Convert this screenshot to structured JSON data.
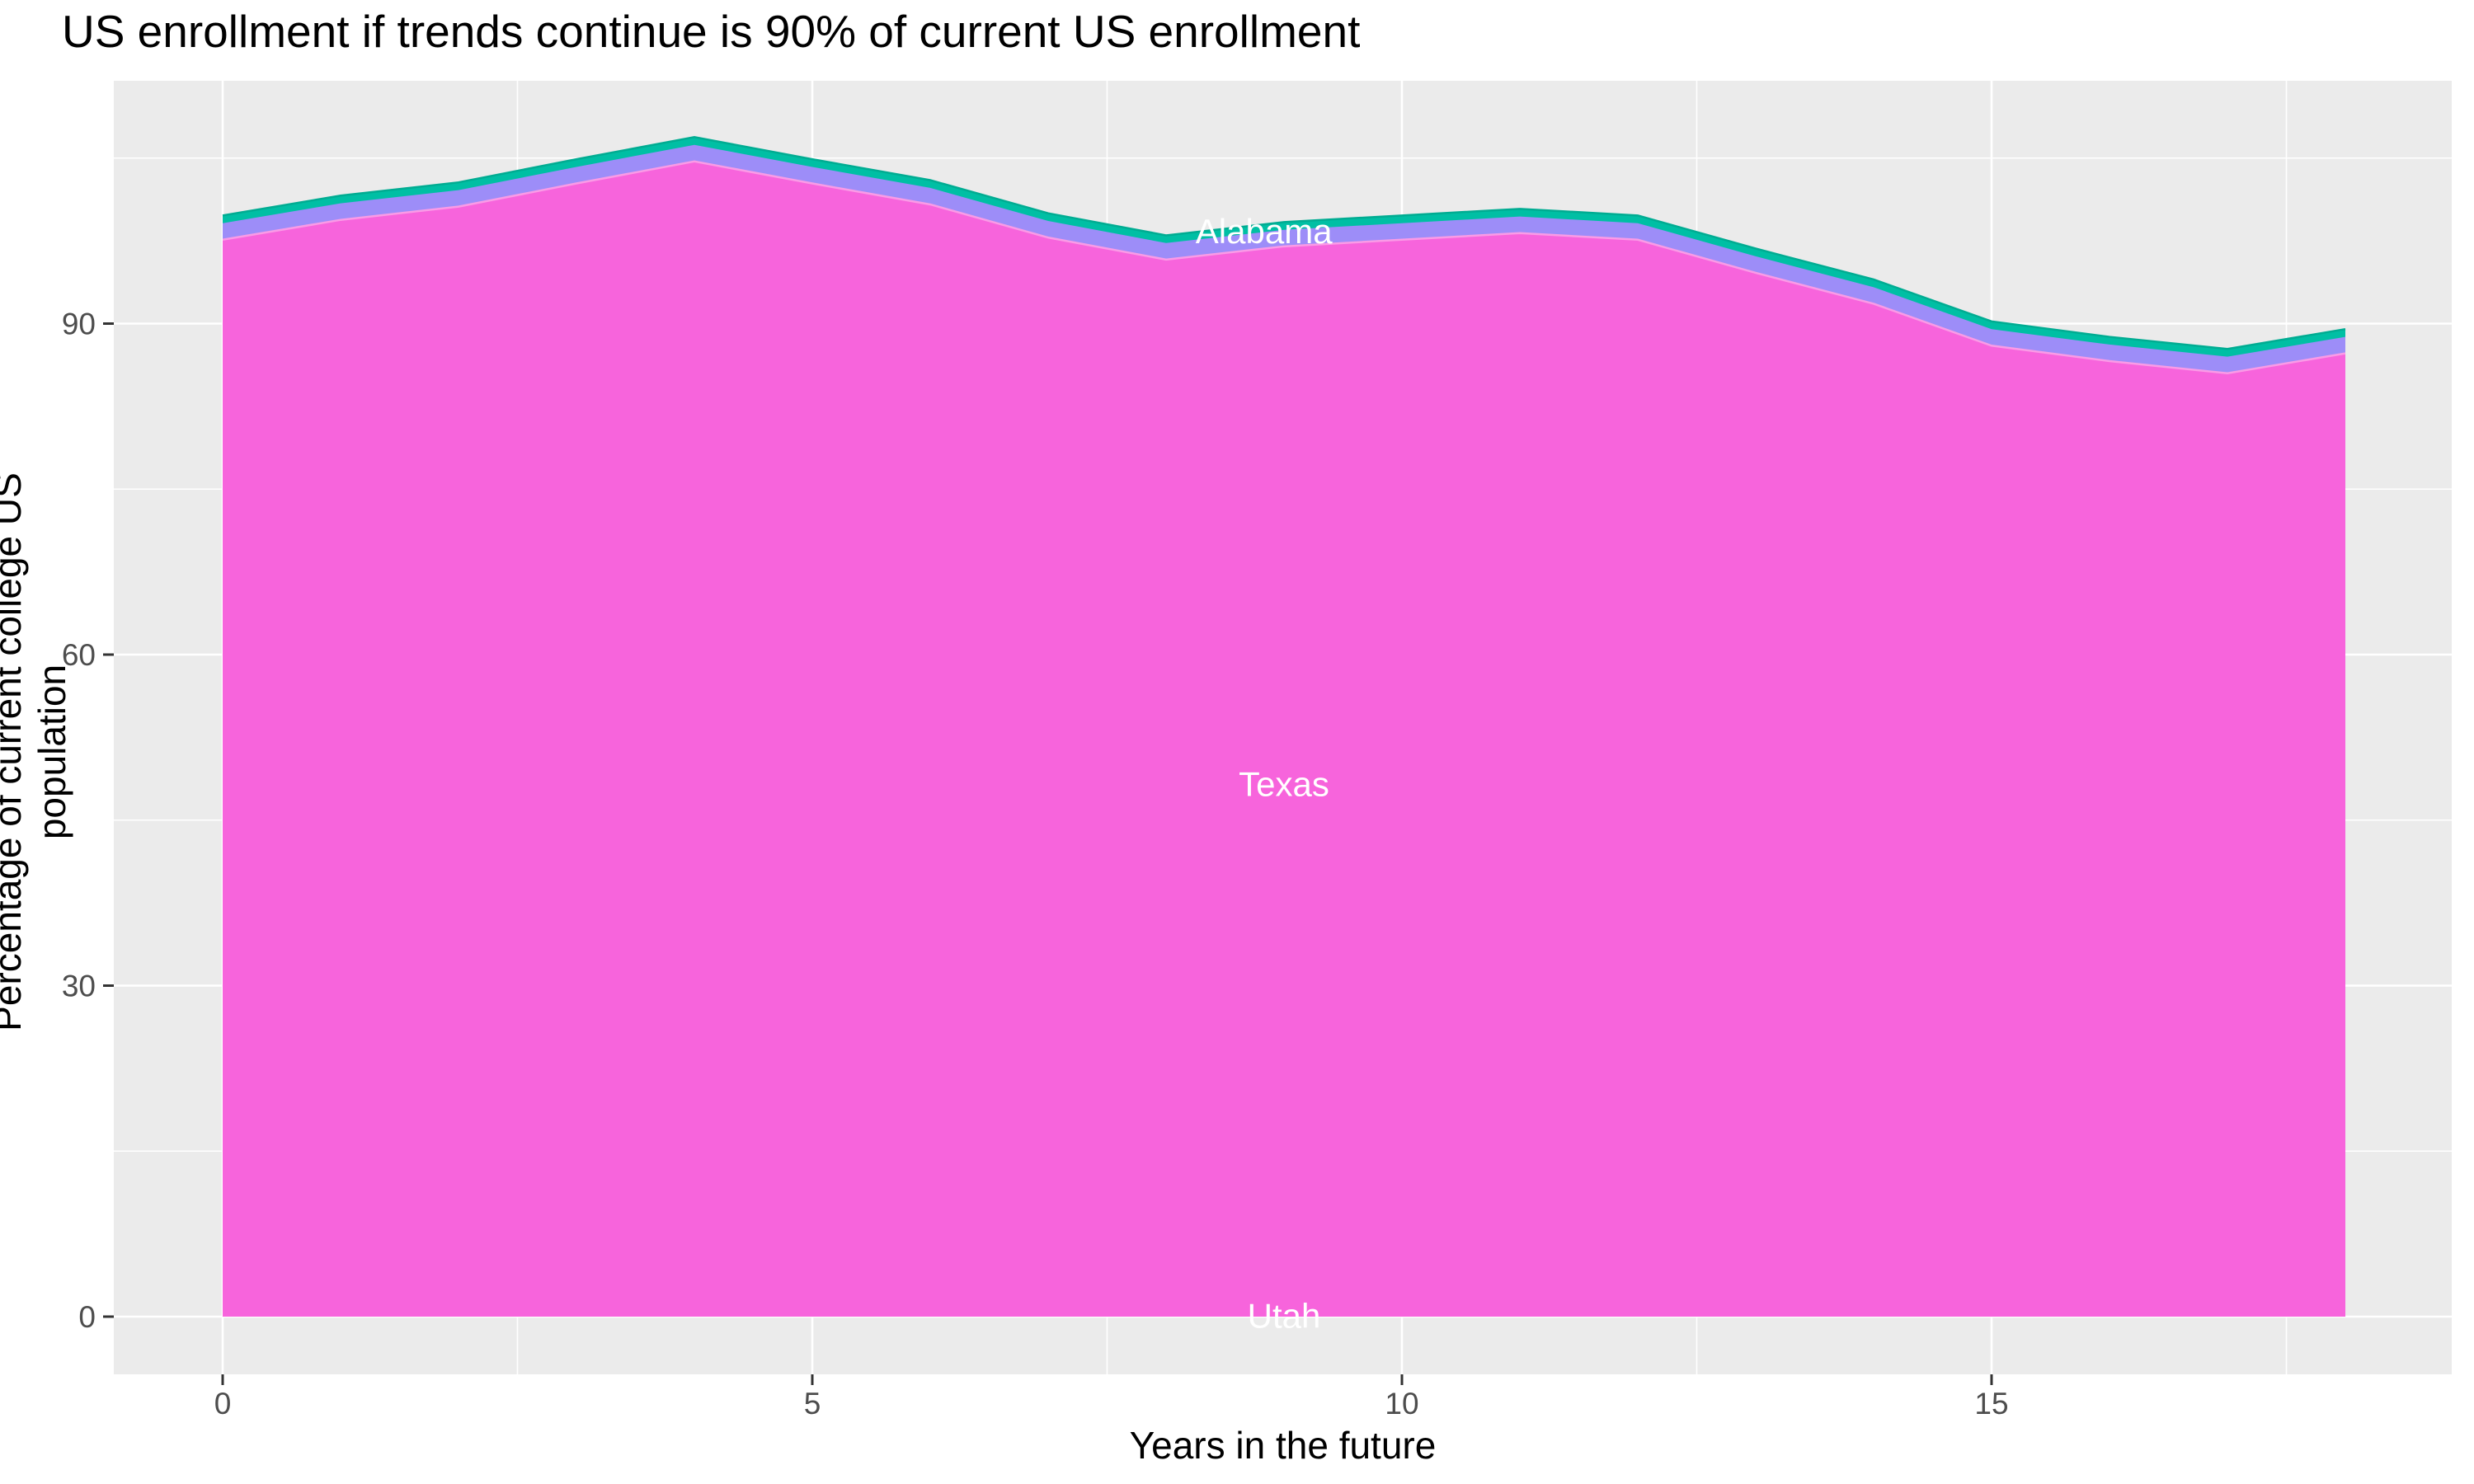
{
  "title": "US enrollment if trends continue is 90% of current US enrollment",
  "chart_data": {
    "type": "area",
    "stacked": true,
    "title": "US enrollment if trends continue is 90% of current US enrollment",
    "xlabel": "Years in the future",
    "ylabel": "Percentage of current college US population",
    "x": [
      0,
      1,
      2,
      3,
      4,
      5,
      6,
      7,
      8,
      9,
      10,
      11,
      12,
      13,
      14,
      15,
      16,
      17,
      18
    ],
    "series": [
      {
        "name": "Texas",
        "color": "#F764DC",
        "top_edge": "#FA9BE6",
        "values": [
          97.6,
          99.4,
          100.6,
          102.7,
          104.7,
          102.7,
          100.8,
          97.8,
          95.8,
          97.0,
          97.6,
          98.2,
          97.6,
          94.6,
          91.8,
          88.0,
          86.6,
          85.5,
          87.3
        ]
      },
      {
        "name": "Alabama",
        "color": "#9D8DF8",
        "top_edge": null,
        "values": [
          1.5,
          1.5,
          1.5,
          1.5,
          1.5,
          1.5,
          1.5,
          1.5,
          1.5,
          1.5,
          1.5,
          1.5,
          1.5,
          1.5,
          1.5,
          1.5,
          1.5,
          1.5,
          1.5
        ]
      },
      {
        "name": "Utah",
        "color": "#00BFA4",
        "top_edge": "#00AC92",
        "values": [
          0.7,
          0.7,
          0.7,
          0.7,
          0.7,
          0.7,
          0.7,
          0.7,
          0.7,
          0.7,
          0.7,
          0.7,
          0.7,
          0.7,
          0.7,
          0.7,
          0.7,
          0.7,
          0.7
        ]
      }
    ],
    "labels": [
      {
        "text": "Alabama",
        "x": 8.83,
        "y": 98.4,
        "color": "#FFFFFF"
      },
      {
        "text": "Texas",
        "x": 9.0,
        "y": 48.3,
        "color": "#FFFFFF"
      },
      {
        "text": "Utah",
        "x": 9.0,
        "y": 0.1,
        "color": "#FFFFFF"
      }
    ],
    "x_ticks": [
      0,
      5,
      10,
      15
    ],
    "y_ticks": [
      0,
      30,
      60,
      90
    ],
    "x_minor": [
      2.5,
      7.5,
      12.5,
      17.5
    ],
    "y_minor": [
      15,
      45,
      75,
      105
    ],
    "xlim": [
      -0.92,
      18.9
    ],
    "ylim": [
      -5.2,
      112.0
    ],
    "legend_position": "none",
    "grid": "white major and minor gridlines on gray panel",
    "panel_background": "#EBEBEB",
    "gridline_color": "#FFFFFF",
    "tick_mark_color": "#333333",
    "tick_label_color": "#4D4D4D"
  }
}
